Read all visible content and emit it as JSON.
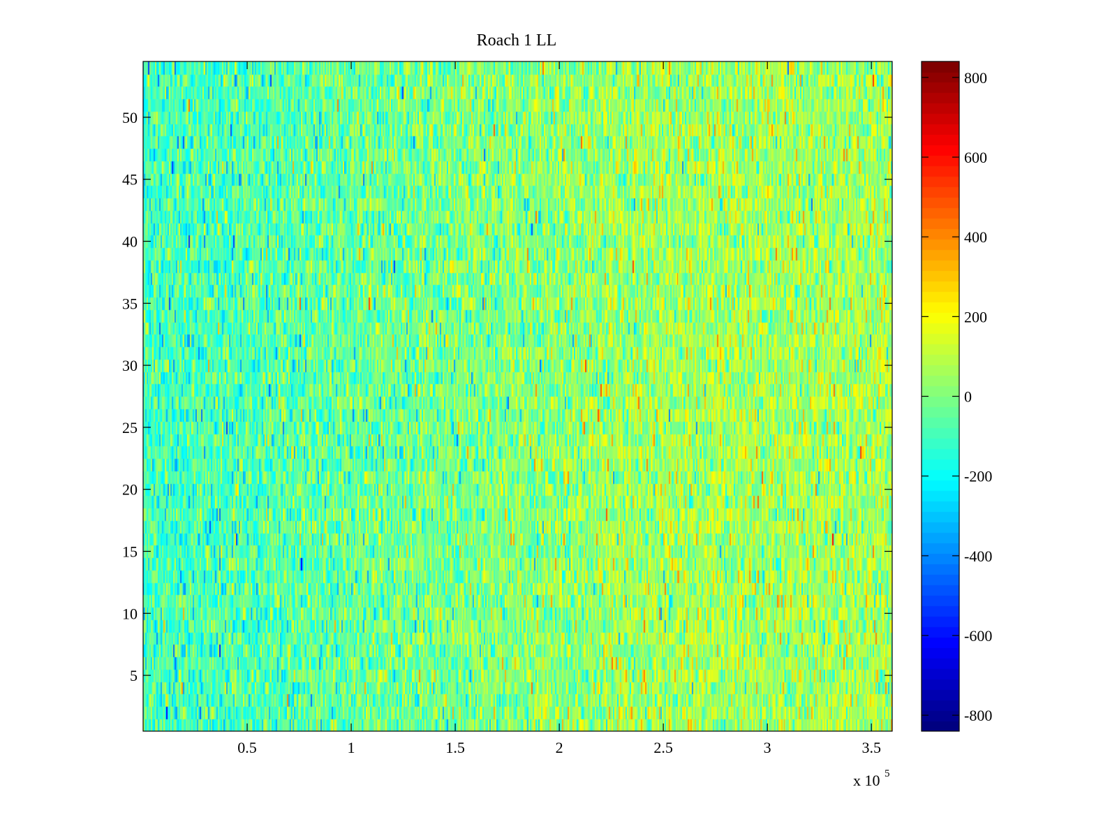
{
  "chart_data": {
    "type": "heatmap",
    "title": "Roach 1 LL",
    "xlabel": "",
    "ylabel": "",
    "x_exponent_label": "x 10",
    "x_exponent": "5",
    "xlim": [
      0,
      360000
    ],
    "ylim": [
      0.5,
      54.5
    ],
    "rows": 54,
    "x_ticks": [
      50000,
      100000,
      150000,
      200000,
      250000,
      300000,
      350000
    ],
    "x_tick_labels": [
      "0.5",
      "1",
      "1.5",
      "2",
      "2.5",
      "3",
      "3.5"
    ],
    "y_ticks": [
      5,
      10,
      15,
      20,
      25,
      30,
      35,
      40,
      45,
      50
    ],
    "y_tick_labels": [
      "5",
      "10",
      "15",
      "20",
      "25",
      "30",
      "35",
      "40",
      "45",
      "50"
    ],
    "colormap": "jet",
    "clim": [
      -840,
      840
    ],
    "colorbar_ticks": [
      800,
      600,
      400,
      200,
      0,
      -200,
      -400,
      -600,
      -800
    ],
    "colorbar_tick_labels": [
      "800",
      "600",
      "400",
      "200",
      "0",
      "-200",
      "-400",
      "-600",
      "-800"
    ],
    "colorbar_placement": "right",
    "value_summary": {
      "mean_left": -110,
      "mean_right": 60,
      "std": 110,
      "columns_approx": 540
    }
  }
}
